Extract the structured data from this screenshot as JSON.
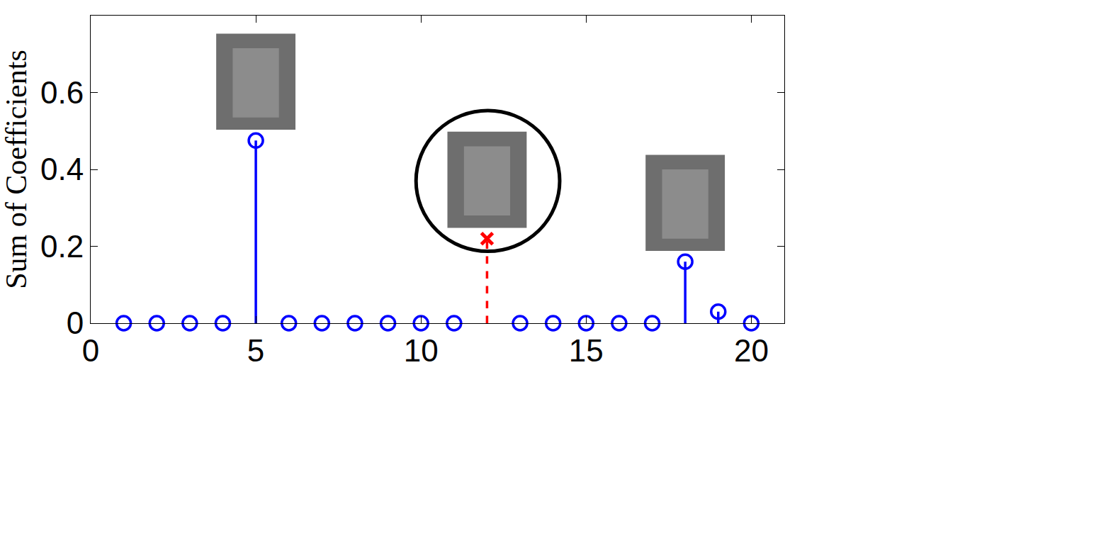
{
  "chart_data": {
    "type": "stem",
    "ylabel": "Sum of Coefficients",
    "xlim": [
      0,
      21
    ],
    "ylim": [
      0,
      0.8
    ],
    "xticks": [
      0,
      5,
      10,
      15,
      20
    ],
    "yticks": [
      0,
      0.2,
      0.4,
      0.6
    ],
    "grid": false,
    "series": [
      {
        "color": "#0000ff",
        "marker": "circle",
        "line_style": "solid",
        "x": [
          1,
          2,
          3,
          4,
          5,
          6,
          7,
          8,
          9,
          10,
          11,
          13,
          14,
          15,
          16,
          17,
          18,
          19,
          20
        ],
        "values": [
          0,
          0,
          0,
          0,
          0.475,
          0,
          0,
          0,
          0,
          0,
          0,
          0,
          0,
          0,
          0,
          0,
          0.16,
          0.03,
          0
        ]
      },
      {
        "color": "#ff0000",
        "marker": "x",
        "line_style": "dashed",
        "x": [
          12
        ],
        "values": [
          0.22
        ]
      }
    ]
  }
}
